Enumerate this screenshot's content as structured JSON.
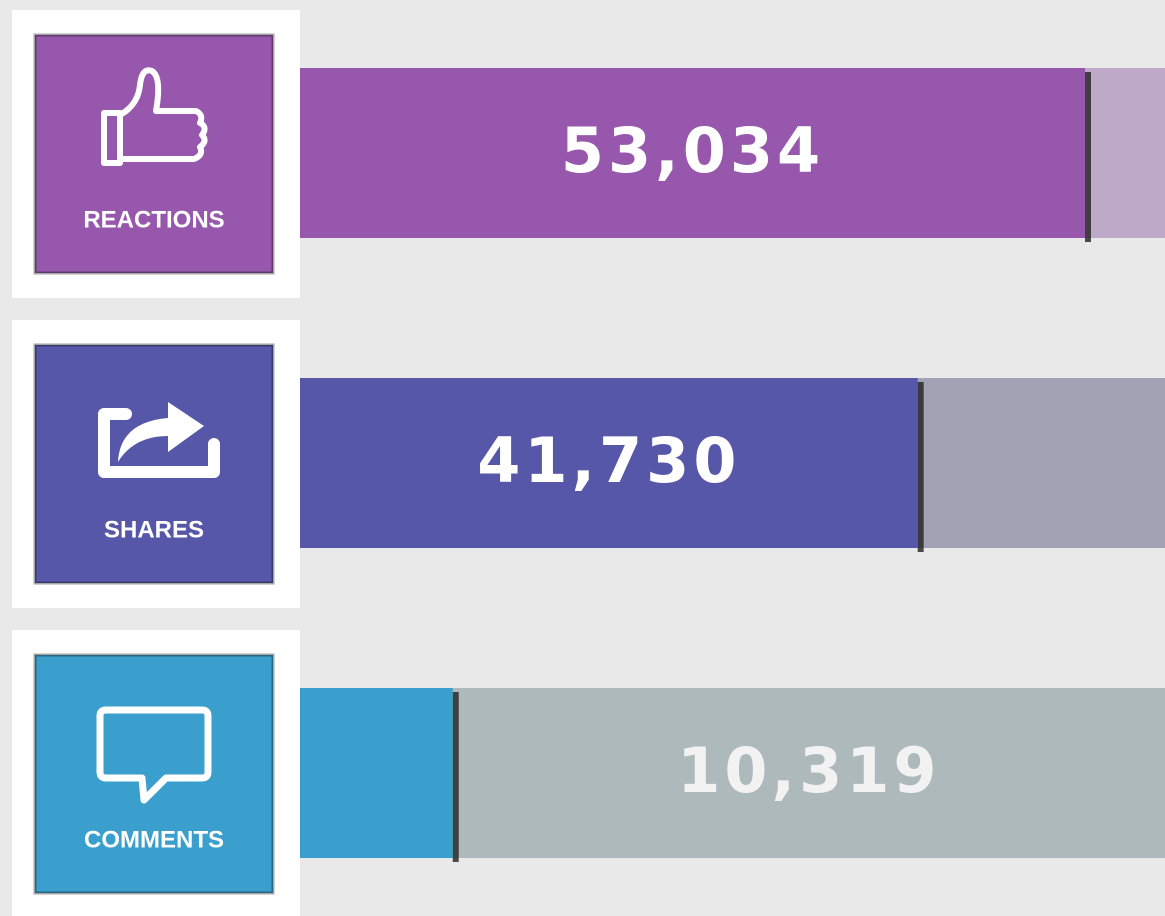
{
  "chart_data": {
    "type": "bar",
    "orientation": "horizontal",
    "categories": [
      "REACTIONS",
      "SHARES",
      "COMMENTS"
    ],
    "values": [
      53034,
      41730,
      10319
    ],
    "value_labels": [
      "53,034",
      "41,730",
      "10,319"
    ],
    "colors": [
      "#9657ad",
      "#5757a9",
      "#3a9fcc"
    ],
    "track_colors": [
      "#bfa9c9",
      "#a1a2b3",
      "#adb9bb"
    ]
  }
}
